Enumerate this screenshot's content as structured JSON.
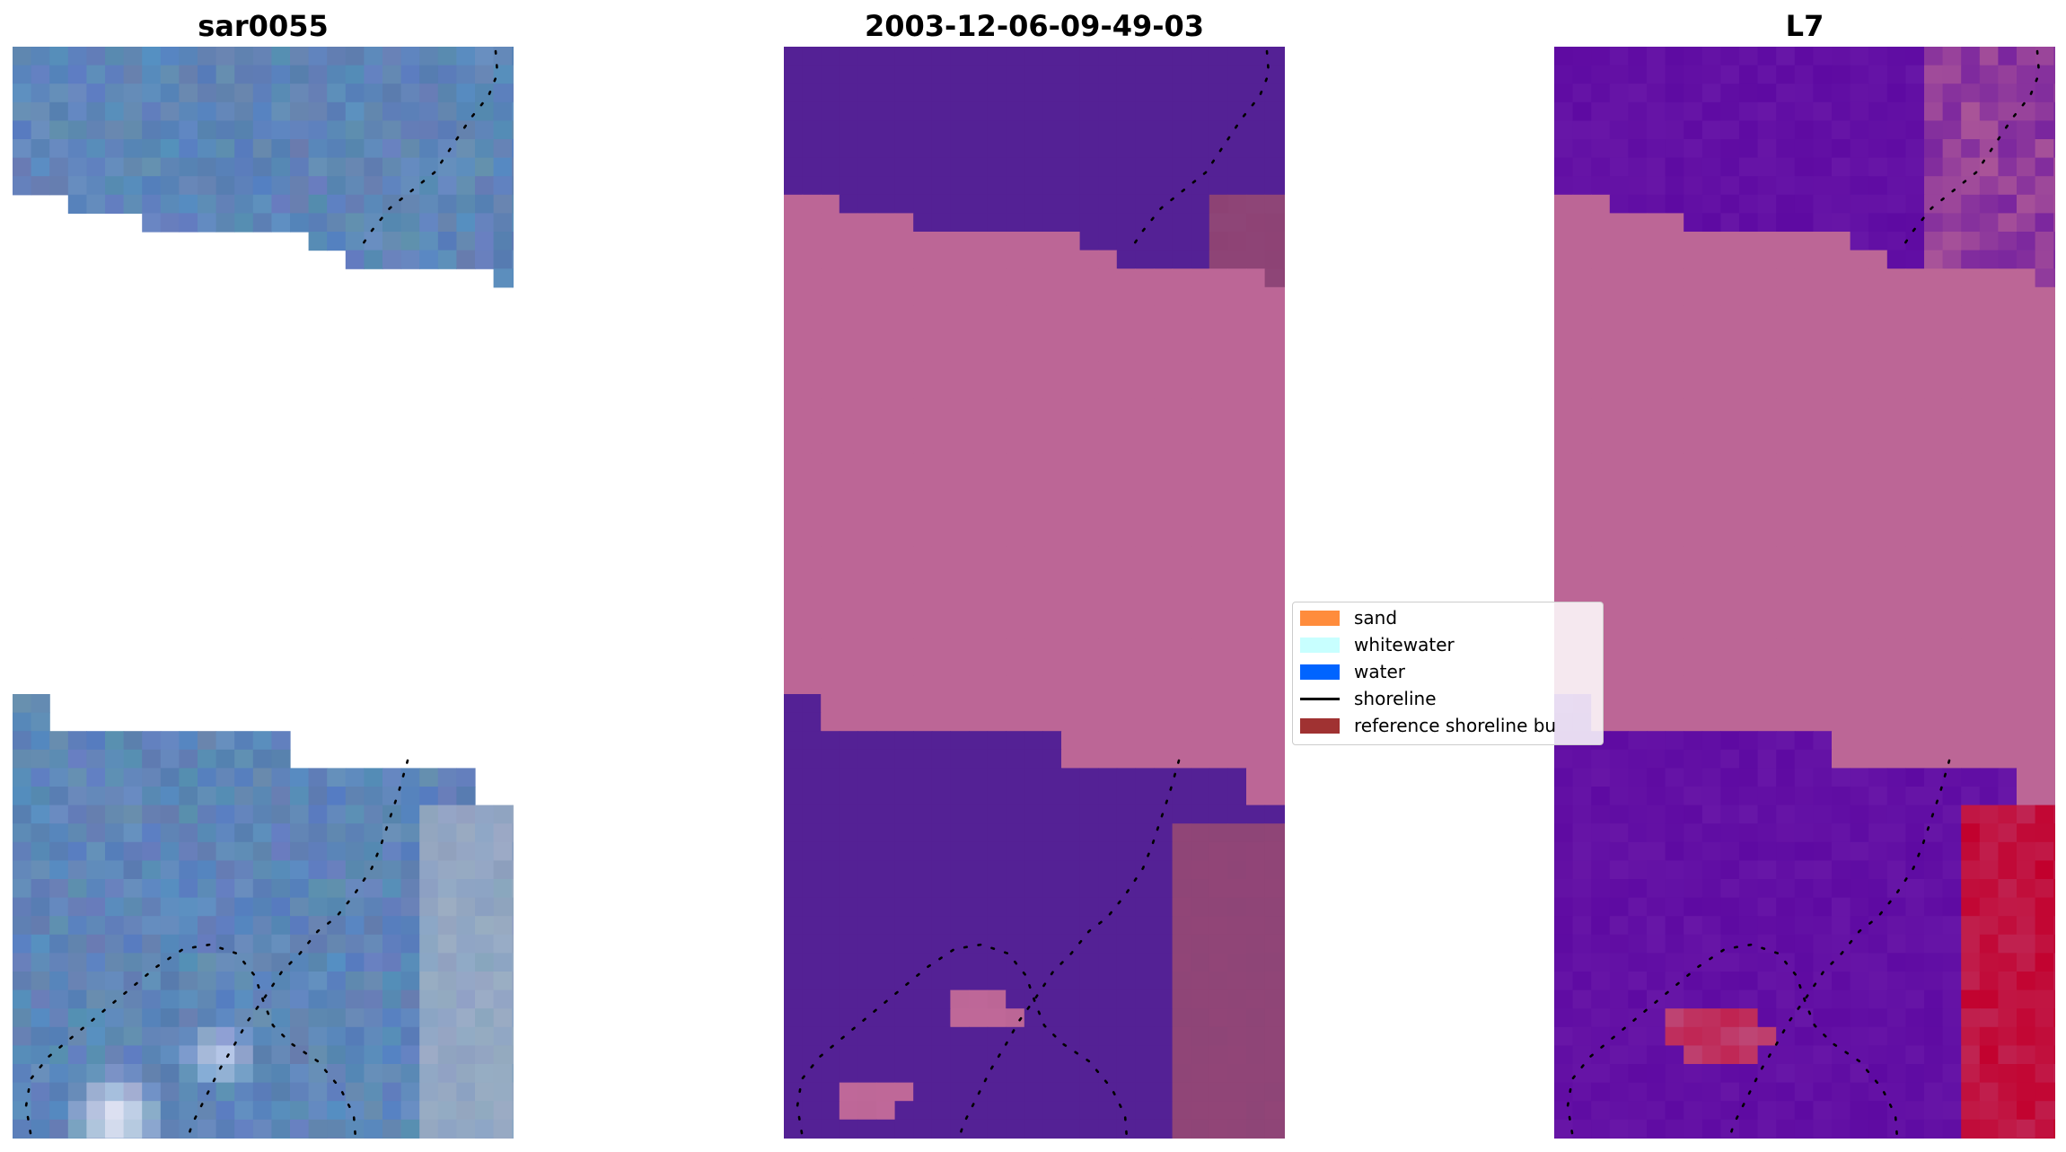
{
  "panels": [
    {
      "title": "sar0055",
      "style": "rgb"
    },
    {
      "title": "2003-12-06-09-49-03",
      "style": "classification"
    },
    {
      "title": "L7",
      "style": "index"
    }
  ],
  "legend": {
    "items": [
      {
        "label": "sand",
        "kind": "patch",
        "color": "#ff8c3c"
      },
      {
        "label": "whitewater",
        "kind": "patch",
        "color": "#c8ffff"
      },
      {
        "label": "water",
        "kind": "patch",
        "color": "#0064ff"
      },
      {
        "label": "shoreline",
        "kind": "line",
        "color": "#000000"
      },
      {
        "label": "reference shoreline bu",
        "kind": "patch",
        "color": "#a03232"
      }
    ]
  },
  "colors": {
    "rgb_base": "#5f86b8",
    "class_water": "#542195",
    "class_land": "#bc6696",
    "class_mixed": "#8e4577",
    "index_low": "#5e0aa2",
    "index_mid": "#bc6696",
    "index_high": "#c2002d"
  }
}
